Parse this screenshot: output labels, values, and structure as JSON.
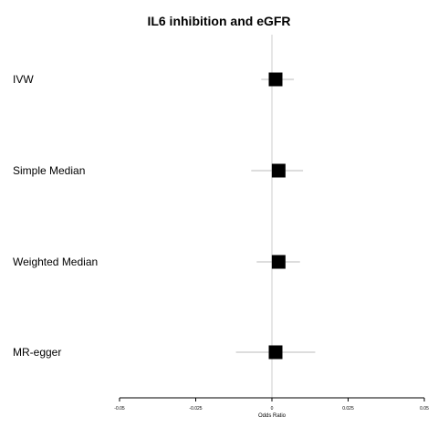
{
  "chart_data": {
    "type": "forest",
    "title": "IL6 inhibition and eGFR",
    "xlabel": "Odds Ratio",
    "xlim": [
      -0.05,
      0.05
    ],
    "xticks": [
      -0.05,
      -0.025,
      0,
      0.025,
      0.05
    ],
    "xtick_labels": [
      "-0.05",
      "-0.025",
      "0",
      "0.025",
      "0.05"
    ],
    "reference_line": 0,
    "rows": [
      {
        "label": "IVW",
        "estimate": 0.0012,
        "lower": -0.0035,
        "upper": 0.0072
      },
      {
        "label": "Simple Median",
        "estimate": 0.0022,
        "lower": -0.0068,
        "upper": 0.0102
      },
      {
        "label": "Weighted Median",
        "estimate": 0.0022,
        "lower": -0.005,
        "upper": 0.0092
      },
      {
        "label": "MR-egger",
        "estimate": 0.0012,
        "lower": -0.0118,
        "upper": 0.0142
      }
    ]
  }
}
